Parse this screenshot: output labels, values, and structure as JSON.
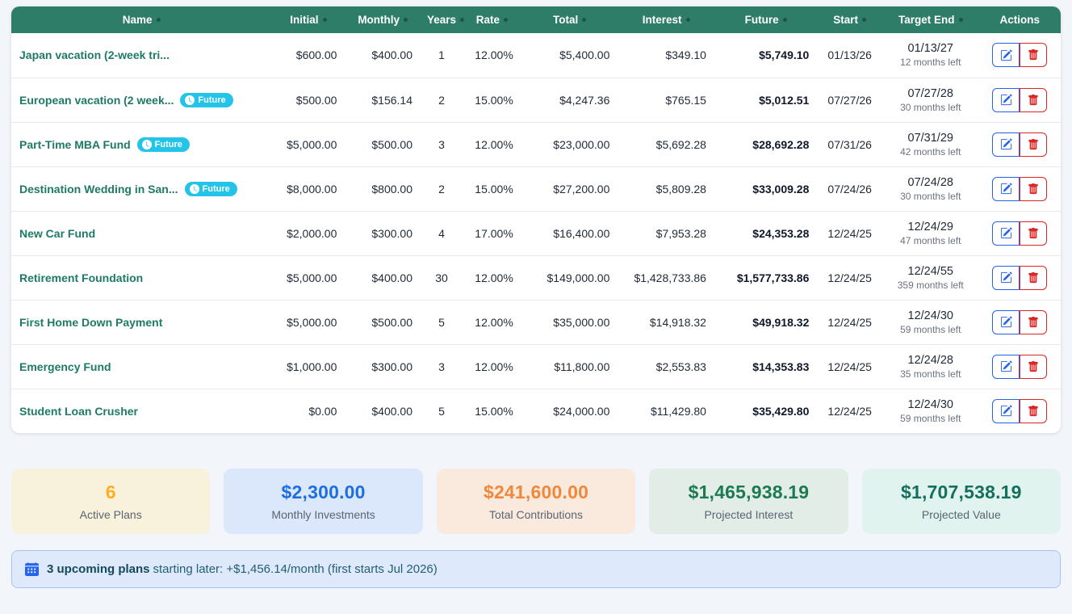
{
  "table": {
    "columns": [
      {
        "id": "name",
        "label": "Name",
        "info_dot": true
      },
      {
        "id": "initial",
        "label": "Initial",
        "info_dot": true
      },
      {
        "id": "monthly",
        "label": "Monthly",
        "info_dot": true
      },
      {
        "id": "years",
        "label": "Years",
        "info_dot": true
      },
      {
        "id": "rate",
        "label": "Rate",
        "info_dot": true
      },
      {
        "id": "total",
        "label": "Total",
        "info_dot": true
      },
      {
        "id": "interest",
        "label": "Interest",
        "info_dot": true
      },
      {
        "id": "future",
        "label": "Future",
        "info_dot": true
      },
      {
        "id": "start",
        "label": "Start",
        "info_dot": true
      },
      {
        "id": "target_end",
        "label": "Target End",
        "info_dot": true
      },
      {
        "id": "actions",
        "label": "Actions",
        "info_dot": false
      }
    ],
    "rows": [
      {
        "name": "Japan vacation (2-week tri...",
        "badge": null,
        "initial": "$600.00",
        "monthly": "$400.00",
        "years": "1",
        "rate": "12.00%",
        "total": "$5,400.00",
        "interest": "$349.10",
        "future": "$5,749.10",
        "start": "01/13/26",
        "target_end": "01/13/27",
        "months_left": "12 months left"
      },
      {
        "name": "European vacation (2 week...",
        "badge": "Future",
        "initial": "$500.00",
        "monthly": "$156.14",
        "years": "2",
        "rate": "15.00%",
        "total": "$4,247.36",
        "interest": "$765.15",
        "future": "$5,012.51",
        "start": "07/27/26",
        "target_end": "07/27/28",
        "months_left": "30 months left"
      },
      {
        "name": "Part-Time MBA Fund",
        "badge": "Future",
        "initial": "$5,000.00",
        "monthly": "$500.00",
        "years": "3",
        "rate": "12.00%",
        "total": "$23,000.00",
        "interest": "$5,692.28",
        "future": "$28,692.28",
        "start": "07/31/26",
        "target_end": "07/31/29",
        "months_left": "42 months left"
      },
      {
        "name": "Destination Wedding in San...",
        "badge": "Future",
        "initial": "$8,000.00",
        "monthly": "$800.00",
        "years": "2",
        "rate": "15.00%",
        "total": "$27,200.00",
        "interest": "$5,809.28",
        "future": "$33,009.28",
        "start": "07/24/26",
        "target_end": "07/24/28",
        "months_left": "30 months left"
      },
      {
        "name": "New Car Fund",
        "badge": null,
        "initial": "$2,000.00",
        "monthly": "$300.00",
        "years": "4",
        "rate": "17.00%",
        "total": "$16,400.00",
        "interest": "$7,953.28",
        "future": "$24,353.28",
        "start": "12/24/25",
        "target_end": "12/24/29",
        "months_left": "47 months left"
      },
      {
        "name": "Retirement Foundation",
        "badge": null,
        "initial": "$5,000.00",
        "monthly": "$400.00",
        "years": "30",
        "rate": "12.00%",
        "total": "$149,000.00",
        "interest": "$1,428,733.86",
        "future": "$1,577,733.86",
        "start": "12/24/25",
        "target_end": "12/24/55",
        "months_left": "359 months left"
      },
      {
        "name": "First Home Down Payment",
        "badge": null,
        "initial": "$5,000.00",
        "monthly": "$500.00",
        "years": "5",
        "rate": "12.00%",
        "total": "$35,000.00",
        "interest": "$14,918.32",
        "future": "$49,918.32",
        "start": "12/24/25",
        "target_end": "12/24/30",
        "months_left": "59 months left"
      },
      {
        "name": "Emergency Fund",
        "badge": null,
        "initial": "$1,000.00",
        "monthly": "$300.00",
        "years": "3",
        "rate": "12.00%",
        "total": "$11,800.00",
        "interest": "$2,553.83",
        "future": "$14,353.83",
        "start": "12/24/25",
        "target_end": "12/24/28",
        "months_left": "35 months left"
      },
      {
        "name": "Student Loan Crusher",
        "badge": null,
        "initial": "$0.00",
        "monthly": "$400.00",
        "years": "5",
        "rate": "15.00%",
        "total": "$24,000.00",
        "interest": "$11,429.80",
        "future": "$35,429.80",
        "start": "12/24/25",
        "target_end": "12/24/30",
        "months_left": "59 months left"
      }
    ],
    "actions": {
      "edit_label": "Edit",
      "delete_label": "Delete"
    }
  },
  "summary_cards": [
    {
      "slug": "active-plans",
      "value": "6",
      "label": "Active Plans",
      "value_color": "#FBB021",
      "bg": "#F8F1DB"
    },
    {
      "slug": "monthly-investments",
      "value": "$2,300.00",
      "label": "Monthly Investments",
      "value_color": "#1D6FE0",
      "bg": "#DBE7FA"
    },
    {
      "slug": "total-contributions",
      "value": "$241,600.00",
      "label": "Total Contributions",
      "value_color": "#F0883B",
      "bg": "#FAEADE"
    },
    {
      "slug": "projected-interest",
      "value": "$1,465,938.19",
      "label": "Projected Interest",
      "value_color": "#1B7A50",
      "bg": "#E3EDE8"
    },
    {
      "slug": "projected-value",
      "value": "$1,707,538.19",
      "label": "Projected Value",
      "value_color": "#14705C",
      "bg": "#E1F3EF"
    }
  ],
  "banner": {
    "bold": "3 upcoming plans",
    "rest": "starting later: +$1,456.14/month (first starts Jul 2026)"
  },
  "icons": {
    "badge_icon": "clock-icon",
    "edit_icon": "pencil-square-icon",
    "delete_icon": "trash-icon",
    "banner_icon": "calendar-icon",
    "header_marker": "info-dot"
  },
  "colors": {
    "header_bg": "#2E7D68",
    "plan_name": "#1E7A66",
    "badge_bg": "#24C4E9",
    "edit_blue": "#2563EB",
    "delete_red": "#DC2626",
    "banner_bg": "#DEE9FC",
    "banner_border": "#AAC4ED",
    "page_bg": "#F2F5F9"
  }
}
